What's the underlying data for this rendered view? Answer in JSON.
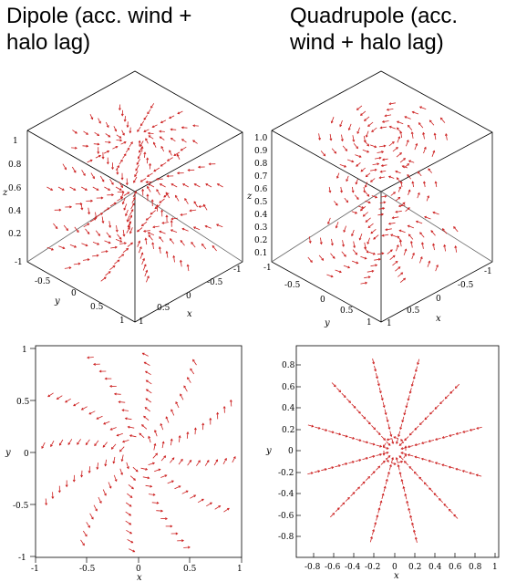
{
  "titles": {
    "dipole": "Dipole (acc. wind +\nhalo lag)",
    "quadrupole": "Quadrupole (acc.\nwind + halo lag)"
  },
  "colors": {
    "arrow": "#cc1f1f",
    "axis": "#000000"
  },
  "panels": {
    "dipole_3d": {
      "z_ticks": [
        "1",
        "0.8",
        "0.6",
        "0.4",
        "0.2"
      ],
      "z_label": "z",
      "y_ticks": [
        "-1",
        "-0.5",
        "0",
        "0.5",
        "1"
      ],
      "y_label": "y",
      "x_ticks": [
        "1",
        "0.5",
        "0",
        "-0.5",
        "-1"
      ],
      "x_label": "x"
    },
    "quad_3d": {
      "z_ticks": [
        "1.0",
        "0.9",
        "0.8",
        "0.7",
        "0.6",
        "0.5",
        "0.4",
        "0.3",
        "0.2",
        "0.1"
      ],
      "z_label": "z",
      "y_ticks": [
        "-1",
        "-0.5",
        "0",
        "0.5",
        "1"
      ],
      "y_label": "y",
      "x_ticks": [
        "1",
        "0.5",
        "0",
        "-0.5",
        "-1"
      ],
      "x_label": "x"
    },
    "dipole_2d": {
      "x_ticks": [
        "-1",
        "-0.5",
        "0",
        "0.5",
        "1"
      ],
      "y_ticks": [
        "1",
        "0.5",
        "0",
        "-0.5",
        "-1"
      ],
      "x_label": "x",
      "y_label": "y"
    },
    "quad_2d": {
      "x_ticks": [
        "-0.8",
        "-0.6",
        "-0.4",
        "-0.2",
        "0",
        "0.2",
        "0.4",
        "0.6",
        "0.8",
        "1"
      ],
      "y_ticks": [
        "0.8",
        "0.6",
        "0.4",
        "0.2",
        "0",
        "-0.2",
        "-0.4",
        "-0.6",
        "-0.8"
      ],
      "x_label": "x",
      "y_label": "y"
    }
  }
}
